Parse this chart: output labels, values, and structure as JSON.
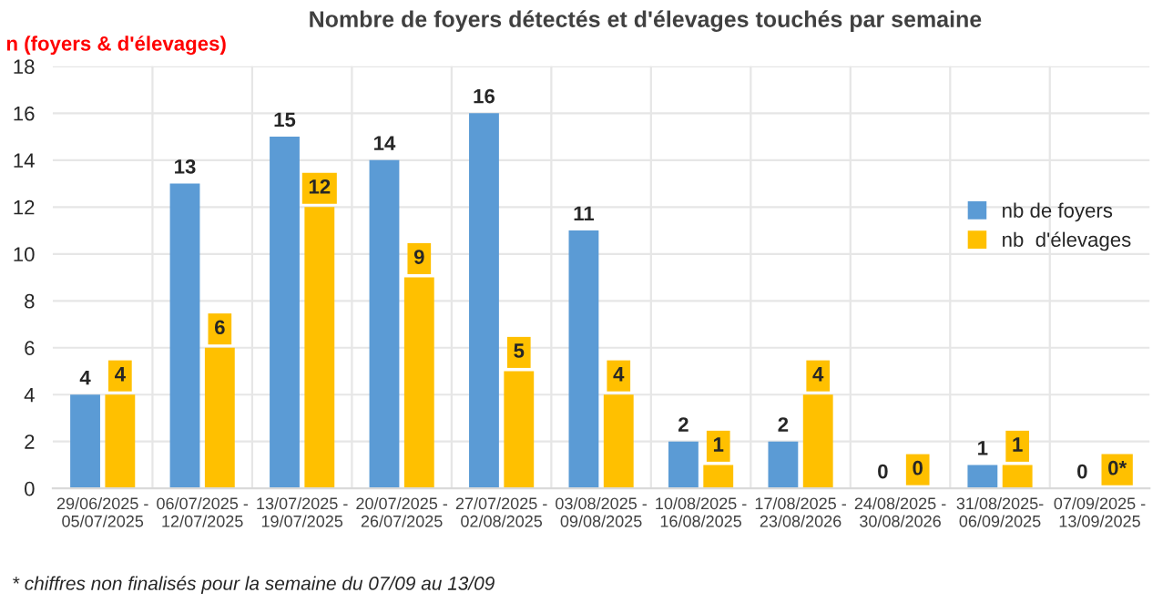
{
  "chart_data": {
    "type": "bar",
    "title": "Nombre de foyers détectés et d'élevages touchés par semaine",
    "ylabel": "n (foyers & d'élevages)",
    "categories": [
      "29/06/2025 -\n05/07/2025",
      "06/07/2025 -\n12/07/2025",
      "13/07/2025 -\n19/07/2025",
      "20/07/2025 -\n26/07/2025",
      "27/07/2025 -\n02/08/2025",
      "03/08/2025 -\n09/08/2025",
      "10/08/2025 -\n16/08/2025",
      "17/08/2025 -\n23/08/2026",
      "24/08/2025 -\n30/08/2026",
      "31/08/2025-\n06/09/2025",
      "07/09/2025 -\n13/09/2025"
    ],
    "series": [
      {
        "name": "nb de foyers",
        "color": "#5b9bd5",
        "values": [
          4,
          13,
          15,
          14,
          16,
          11,
          2,
          2,
          0,
          1,
          0
        ],
        "value_labels": [
          "4",
          "13",
          "15",
          "14",
          "16",
          "11",
          "2",
          "2",
          "0",
          "1",
          "0"
        ]
      },
      {
        "name": "nb  d'élevages",
        "color": "#ffc000",
        "values": [
          4,
          6,
          12,
          9,
          5,
          4,
          1,
          4,
          0,
          1,
          0
        ],
        "value_labels": [
          "4",
          "6",
          "12",
          "9",
          "5",
          "4",
          "1",
          "4",
          "0",
          "1",
          "0*"
        ]
      }
    ],
    "ylim": [
      0,
      18
    ],
    "yticks": [
      0,
      2,
      4,
      6,
      8,
      10,
      12,
      14,
      16,
      18
    ],
    "grid": "y",
    "legend": "right",
    "annotations": [
      "* chiffres non finalisés pour la semaine du 07/09 au 13/09"
    ]
  }
}
